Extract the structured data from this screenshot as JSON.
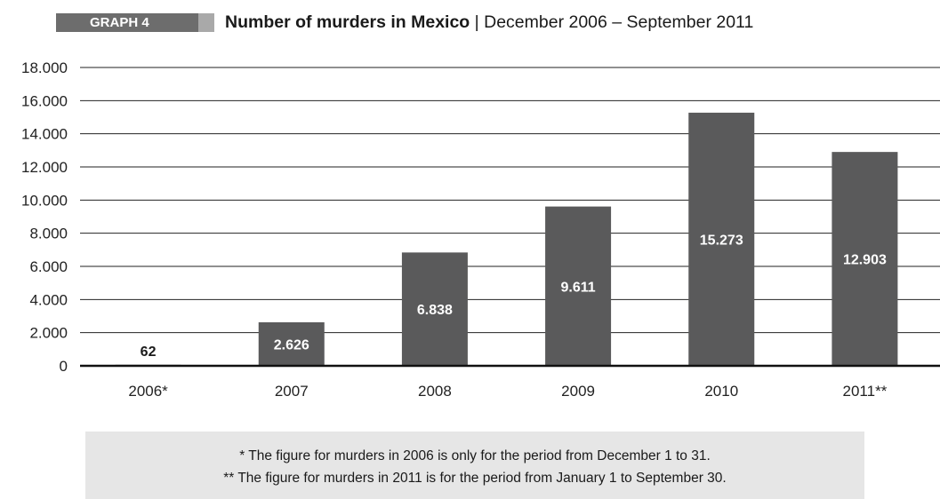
{
  "header": {
    "graph_label": "GRAPH 4",
    "title_bold": "Number of murders in Mexico",
    "separator": " | ",
    "title_rest": "December 2006 – September 2011"
  },
  "chart_data": {
    "type": "bar",
    "title": "Number of murders in Mexico | December 2006 – September 2011",
    "categories": [
      "2006*",
      "2007",
      "2008",
      "2009",
      "2010",
      "2011**"
    ],
    "values": [
      62,
      2626,
      6838,
      9611,
      15273,
      12903
    ],
    "value_labels": [
      "62",
      "2.626",
      "6.838",
      "9.611",
      "15.273",
      "12.903"
    ],
    "ylim": [
      0,
      18000
    ],
    "yticks": [
      0,
      2000,
      4000,
      6000,
      8000,
      10000,
      12000,
      14000,
      16000,
      18000
    ],
    "ytick_labels": [
      "0",
      "2.000",
      "4.000",
      "6.000",
      "8.000",
      "10.000",
      "12.000",
      "14.000",
      "16.000",
      "18.000"
    ],
    "grid": true,
    "bar_color": "#5a5a5b",
    "label_color_inside": "#ffffff",
    "label_color_outside": "#1a1a1a"
  },
  "notes": {
    "line1": "* The figure for murders in 2006 is only for the period from December 1 to 31.",
    "line2": "** The figure for murders in 2011 is for the period from January 1 to September 30."
  }
}
